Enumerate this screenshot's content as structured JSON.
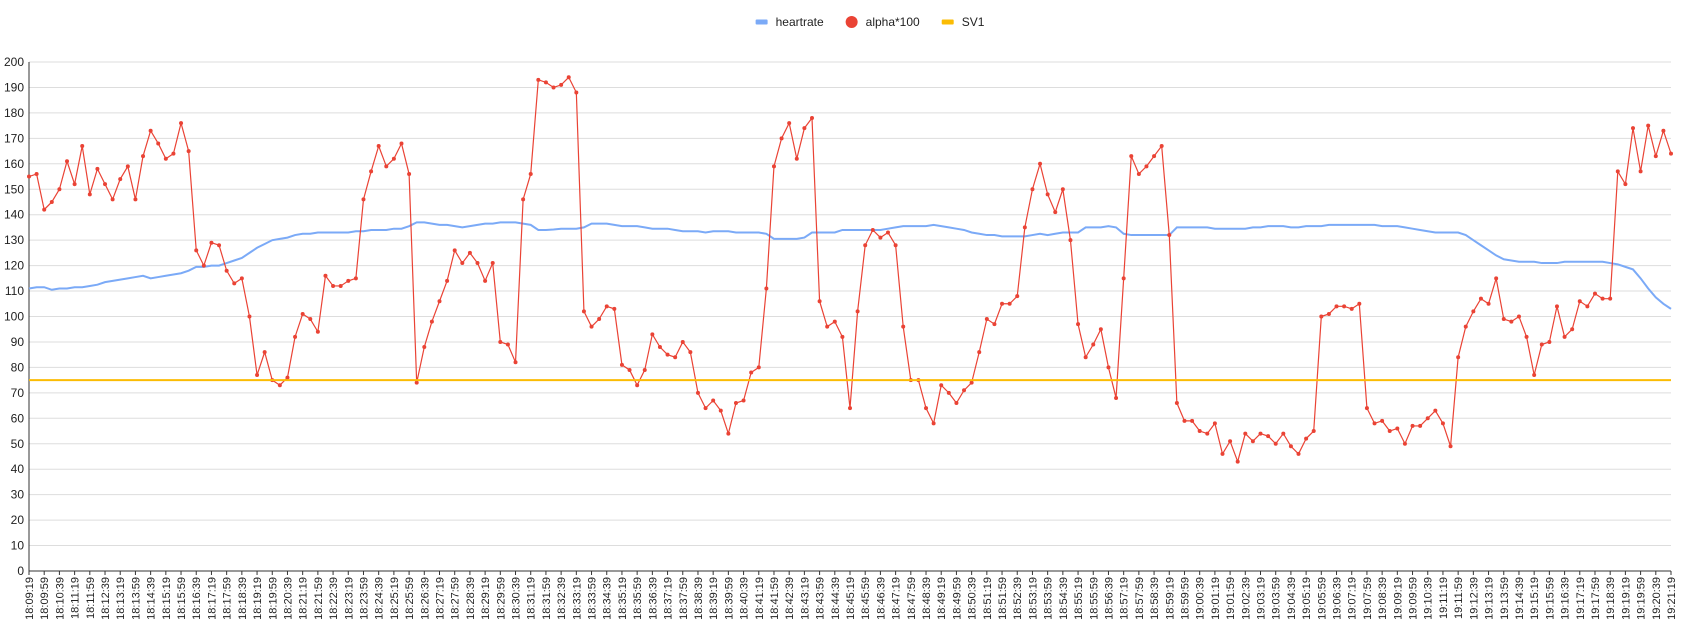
{
  "chart_data": {
    "type": "line",
    "categories": [
      "18:09:19",
      null,
      "18:09:59",
      null,
      "18:10:39",
      null,
      "18:11:19",
      null,
      "18:11:59",
      null,
      "18:12:39",
      null,
      "18:13:19",
      null,
      "18:13:59",
      null,
      "18:14:39",
      null,
      "18:15:19",
      null,
      "18:15:59",
      null,
      "18:16:39",
      null,
      "18:17:19",
      null,
      "18:17:59",
      null,
      "18:18:39",
      null,
      "18:19:19",
      null,
      "18:19:59",
      null,
      "18:20:39",
      null,
      "18:21:19",
      null,
      "18:21:59",
      null,
      "18:22:39",
      null,
      "18:23:19",
      null,
      "18:23:59",
      null,
      "18:24:39",
      null,
      "18:25:19",
      null,
      "18:25:59",
      null,
      "18:26:39",
      null,
      "18:27:19",
      null,
      "18:27:59",
      null,
      "18:28:39",
      null,
      "18:29:19",
      null,
      "18:29:59",
      null,
      "18:30:39",
      null,
      "18:31:19",
      null,
      "18:31:59",
      null,
      "18:32:39",
      null,
      "18:33:19",
      null,
      "18:33:59",
      null,
      "18:34:39",
      null,
      "18:35:19",
      null,
      "18:35:59",
      null,
      "18:36:39",
      null,
      "18:37:19",
      null,
      "18:37:59",
      null,
      "18:38:39",
      null,
      "18:39:19",
      null,
      "18:39:59",
      null,
      "18:40:39",
      null,
      "18:41:19",
      null,
      "18:41:59",
      null,
      "18:42:39",
      null,
      "18:43:19",
      null,
      "18:43:59",
      null,
      "18:44:39",
      null,
      "18:45:19",
      null,
      "18:45:59",
      null,
      "18:46:39",
      null,
      "18:47:19",
      null,
      "18:47:59",
      null,
      "18:48:39",
      null,
      "18:49:19",
      null,
      "18:49:59",
      null,
      "18:50:39",
      null,
      "18:51:19",
      null,
      "18:51:59",
      null,
      "18:52:39",
      null,
      "18:53:19",
      null,
      "18:53:59",
      null,
      "18:54:39",
      null,
      "18:55:19",
      null,
      "18:55:59",
      null,
      "18:56:39",
      null,
      "18:57:19",
      null,
      "18:57:59",
      null,
      "18:58:39",
      null,
      "18:59:19",
      null,
      "18:59:59",
      null,
      "19:00:39",
      null,
      "19:01:19",
      null,
      "19:01:59",
      null,
      "19:02:39",
      null,
      "19:03:19",
      null,
      "19:03:59",
      null,
      "19:04:39",
      null,
      "19:05:19",
      null,
      "19:05:59",
      null,
      "19:06:39",
      null,
      "19:07:19",
      null,
      "19:07:59",
      null,
      "19:08:39",
      null,
      "19:09:19",
      null,
      "19:09:59",
      null,
      "19:10:39",
      null,
      "19:11:19",
      null,
      "19:11:59",
      null,
      "19:12:39",
      null,
      "19:13:19",
      null,
      "19:13:59",
      null,
      "19:14:39",
      null,
      "19:15:19",
      null,
      "19:15:59",
      null,
      "19:16:39",
      null,
      "19:17:19",
      null,
      "19:17:59",
      null,
      "19:18:39",
      null,
      "19:19:19",
      null,
      "19:19:59",
      null,
      "19:20:39",
      null,
      "19:21:19"
    ],
    "series": [
      {
        "name": "heartrate",
        "color": "#7baaf7",
        "show_points": false,
        "values": [
          111,
          111.5,
          111.5,
          110.5,
          111,
          111,
          111.5,
          111.5,
          112,
          112.5,
          113.5,
          114,
          114.5,
          115,
          115.5,
          116,
          115,
          115.5,
          116,
          116.5,
          117,
          118,
          119.5,
          119.5,
          120,
          120,
          121,
          122,
          123,
          125,
          127,
          128.5,
          130,
          130.5,
          131,
          132,
          132.5,
          132.5,
          133,
          133,
          133,
          133,
          133,
          133.5,
          133.5,
          134,
          134,
          134,
          134.5,
          134.5,
          135.5,
          137,
          137,
          136.5,
          136,
          136,
          135.5,
          135,
          135.5,
          136,
          136.5,
          136.5,
          137,
          137,
          137,
          136.5,
          136,
          134,
          134,
          134.2,
          134.5,
          134.5,
          134.5,
          135,
          136.5,
          136.5,
          136.5,
          136,
          135.5,
          135.5,
          135.5,
          135,
          134.5,
          134.5,
          134.5,
          134,
          133.5,
          133.5,
          133.5,
          133,
          133.5,
          133.5,
          133.5,
          133,
          133,
          133,
          133,
          132.5,
          130.5,
          130.5,
          130.5,
          130.5,
          131,
          133,
          133,
          133,
          133,
          134,
          134,
          134,
          134,
          134,
          134,
          134.5,
          135,
          135.5,
          135.5,
          135.5,
          135.5,
          136,
          135.5,
          135,
          134.5,
          134,
          133,
          132.5,
          132,
          132,
          131.5,
          131.5,
          131.5,
          131.5,
          132,
          132.5,
          132,
          132.5,
          133,
          133,
          133,
          135,
          135,
          135,
          135.5,
          135,
          132.5,
          132,
          132,
          132,
          132,
          132,
          132,
          135,
          135,
          135,
          135,
          135,
          134.5,
          134.5,
          134.5,
          134.5,
          134.5,
          135,
          135,
          135.5,
          135.5,
          135.5,
          135,
          135,
          135.5,
          135.5,
          135.5,
          136,
          136,
          136,
          136,
          136,
          136,
          136,
          135.5,
          135.5,
          135.5,
          135,
          134.5,
          134,
          133.5,
          133,
          133,
          133,
          133,
          132,
          130,
          128,
          126,
          124,
          122.5,
          122,
          121.5,
          121.5,
          121.5,
          121,
          121,
          121,
          121.5,
          121.5,
          121.5,
          121.5,
          121.5,
          121.5,
          121,
          120.5,
          119.5,
          118.5,
          115,
          111,
          107.5,
          105,
          103
        ]
      },
      {
        "name": "alpha*100",
        "color": "#ea4335",
        "show_points": true,
        "values": [
          155,
          156,
          142,
          145,
          150,
          161,
          152,
          167,
          148,
          158,
          152,
          146,
          154,
          159,
          146,
          163,
          173,
          168,
          162,
          164,
          176,
          165,
          126,
          120,
          129,
          128,
          118,
          113,
          115,
          100,
          77,
          86,
          75,
          73,
          76,
          92,
          101,
          99,
          94,
          116,
          112,
          112,
          114,
          115,
          146,
          157,
          167,
          159,
          162,
          168,
          156,
          74,
          88,
          98,
          106,
          114,
          126,
          121,
          125,
          121,
          114,
          121,
          90,
          89,
          82,
          146,
          156,
          193,
          192,
          190,
          191,
          194,
          188,
          102,
          96,
          99,
          104,
          103,
          81,
          79,
          73,
          79,
          93,
          88,
          85,
          84,
          90,
          86,
          70,
          64,
          67,
          63,
          54,
          66,
          67,
          78,
          80,
          111,
          159,
          170,
          176,
          162,
          174,
          178,
          106,
          96,
          98,
          92,
          64,
          102,
          128,
          134,
          131,
          133,
          128,
          96,
          75,
          75,
          64,
          58,
          73,
          70,
          66,
          71,
          74,
          86,
          99,
          97,
          105,
          105,
          108,
          135,
          150,
          160,
          148,
          141,
          150,
          130,
          97,
          84,
          89,
          95,
          80,
          68,
          115,
          163,
          156,
          159,
          163,
          167,
          132,
          66,
          59,
          59,
          55,
          54,
          58,
          46,
          51,
          43,
          54,
          51,
          54,
          53,
          50,
          54,
          49,
          46,
          52,
          55,
          100,
          101,
          104,
          104,
          103,
          105,
          64,
          58,
          59,
          55,
          56,
          50,
          57,
          57,
          60,
          63,
          58,
          49,
          84,
          96,
          102,
          107,
          105,
          115,
          99,
          98,
          100,
          92,
          77,
          89,
          90,
          104,
          92,
          95,
          106,
          104,
          109,
          107,
          107,
          157,
          152,
          174,
          157,
          175,
          163,
          173,
          164
        ]
      },
      {
        "name": "SV1",
        "color": "#fbbc04",
        "show_points": false,
        "values": [
          75,
          75,
          75,
          75,
          75,
          75,
          75,
          75,
          75,
          75,
          75,
          75,
          75,
          75,
          75,
          75,
          75,
          75,
          75,
          75,
          75,
          75,
          75,
          75,
          75,
          75,
          75,
          75,
          75,
          75,
          75,
          75,
          75,
          75,
          75,
          75,
          75,
          75,
          75,
          75,
          75,
          75,
          75,
          75,
          75,
          75,
          75,
          75,
          75,
          75,
          75,
          75,
          75,
          75,
          75,
          75,
          75,
          75,
          75,
          75,
          75,
          75,
          75,
          75,
          75,
          75,
          75,
          75,
          75,
          75,
          75,
          75,
          75,
          75,
          75,
          75,
          75,
          75,
          75,
          75,
          75,
          75,
          75,
          75,
          75,
          75,
          75,
          75,
          75,
          75,
          75,
          75,
          75,
          75,
          75,
          75,
          75,
          75,
          75,
          75,
          75,
          75,
          75,
          75,
          75,
          75,
          75,
          75,
          75,
          75,
          75,
          75,
          75,
          75,
          75,
          75,
          75,
          75,
          75,
          75,
          75,
          75,
          75,
          75,
          75,
          75,
          75,
          75,
          75,
          75,
          75,
          75,
          75,
          75,
          75,
          75,
          75,
          75,
          75,
          75,
          75,
          75,
          75,
          75,
          75,
          75,
          75,
          75,
          75,
          75,
          75,
          75,
          75,
          75,
          75,
          75,
          75,
          75,
          75,
          75,
          75,
          75,
          75,
          75,
          75,
          75,
          75,
          75,
          75,
          75,
          75,
          75,
          75,
          75,
          75,
          75,
          75,
          75,
          75,
          75,
          75,
          75,
          75,
          75,
          75,
          75,
          75,
          75,
          75,
          75,
          75,
          75,
          75,
          75,
          75,
          75,
          75,
          75,
          75,
          75,
          75,
          75,
          75,
          75,
          75,
          75,
          75,
          75,
          75,
          75,
          75,
          75,
          75,
          75,
          75,
          75,
          75
        ]
      }
    ],
    "ylim": [
      0,
      200
    ],
    "yticks": [
      0,
      10,
      20,
      30,
      40,
      50,
      60,
      70,
      80,
      90,
      100,
      110,
      120,
      130,
      140,
      150,
      160,
      170,
      180,
      190,
      200
    ],
    "grid": true,
    "legend": "top"
  }
}
